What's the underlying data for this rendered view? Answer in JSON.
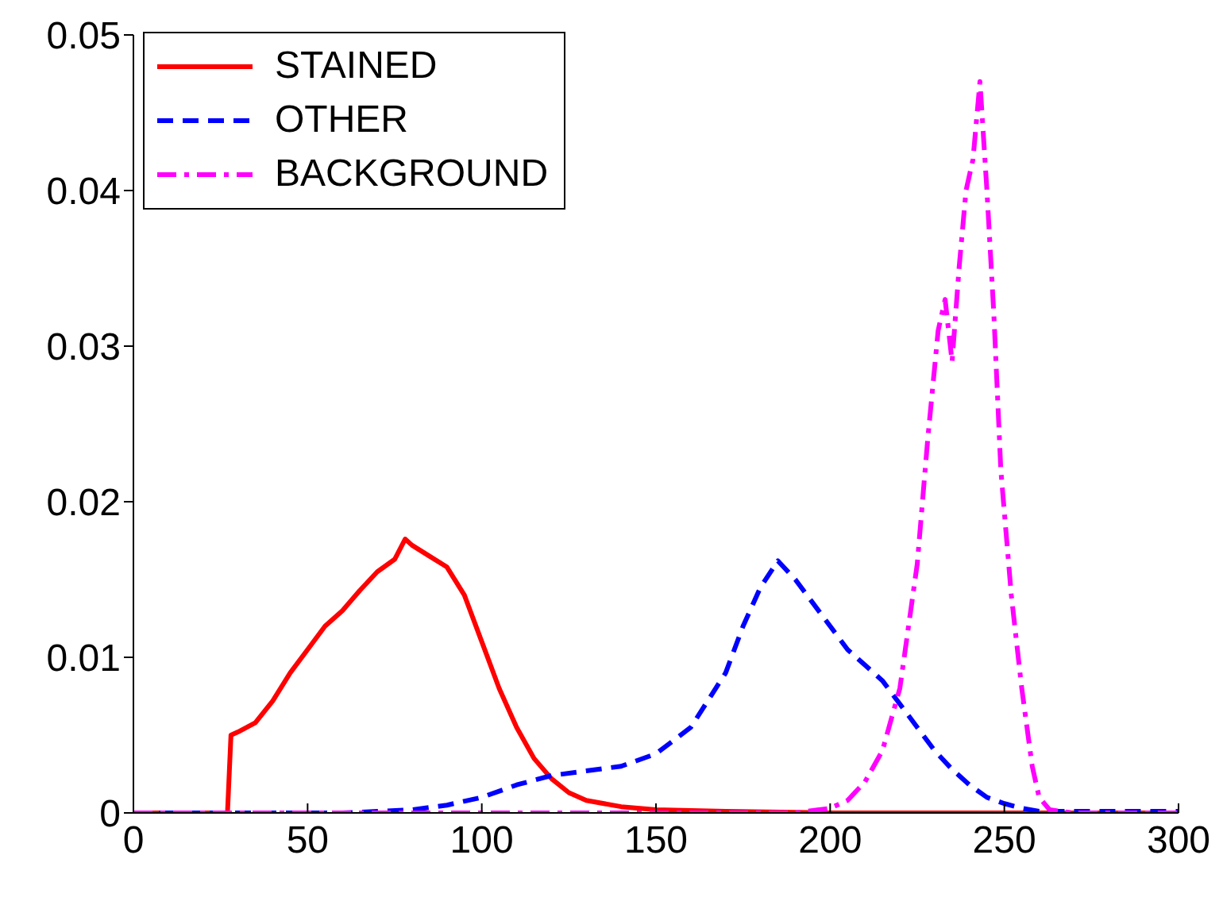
{
  "chart_data": {
    "type": "line",
    "xlim": [
      0,
      300
    ],
    "xticks": [
      0,
      50,
      100,
      150,
      200,
      250,
      300
    ],
    "ylim": [
      0,
      0.05
    ],
    "yticks": [
      0,
      0.01,
      0.02,
      0.03,
      0.04,
      0.05
    ],
    "grid": false,
    "legend": "top left",
    "marker": "none",
    "series": [
      {
        "name": "STAINED",
        "color": "#ff0000",
        "line_style": "solid",
        "x": [
          0,
          10,
          20,
          27,
          28,
          30,
          35,
          40,
          45,
          50,
          55,
          60,
          65,
          70,
          75,
          78,
          80,
          85,
          90,
          95,
          100,
          105,
          110,
          115,
          120,
          125,
          130,
          140,
          150,
          170,
          200,
          250,
          300
        ],
        "values": [
          0,
          0,
          0,
          0,
          0.005,
          0.0052,
          0.0058,
          0.0072,
          0.009,
          0.0105,
          0.012,
          0.013,
          0.0143,
          0.0155,
          0.0163,
          0.0176,
          0.0172,
          0.0165,
          0.0158,
          0.014,
          0.011,
          0.008,
          0.0055,
          0.0035,
          0.0022,
          0.0013,
          0.0008,
          0.0004,
          0.0002,
          0.0001,
          0,
          0,
          0
        ]
      },
      {
        "name": "OTHER",
        "color": "#0000ff",
        "line_style": "dashed",
        "x": [
          0,
          30,
          60,
          70,
          80,
          90,
          100,
          110,
          120,
          130,
          140,
          150,
          160,
          170,
          175,
          180,
          185,
          190,
          195,
          200,
          205,
          210,
          215,
          220,
          225,
          230,
          235,
          240,
          245,
          250,
          255,
          260,
          270,
          300
        ],
        "values": [
          0,
          0,
          0,
          0.0001,
          0.0002,
          0.0005,
          0.001,
          0.0018,
          0.0024,
          0.0027,
          0.003,
          0.0038,
          0.0055,
          0.009,
          0.012,
          0.0145,
          0.0162,
          0.015,
          0.0135,
          0.012,
          0.0105,
          0.0095,
          0.0085,
          0.007,
          0.0055,
          0.004,
          0.0028,
          0.0018,
          0.001,
          0.0006,
          0.0003,
          0.0001,
          0.0001,
          0.0001
        ]
      },
      {
        "name": "BACKGROUND",
        "color": "#ff00ff",
        "line_style": "dashdot",
        "x": [
          0,
          100,
          150,
          190,
          200,
          205,
          210,
          215,
          220,
          225,
          228,
          231,
          233,
          235,
          237,
          239,
          241,
          243,
          245,
          247,
          249,
          252,
          255,
          258,
          260,
          263,
          270,
          300
        ],
        "values": [
          0,
          0,
          0,
          0,
          0.0003,
          0.0008,
          0.002,
          0.004,
          0.008,
          0.016,
          0.024,
          0.031,
          0.033,
          0.029,
          0.035,
          0.04,
          0.042,
          0.047,
          0.04,
          0.032,
          0.022,
          0.014,
          0.008,
          0.003,
          0.001,
          0.0002,
          0,
          0
        ]
      }
    ]
  }
}
